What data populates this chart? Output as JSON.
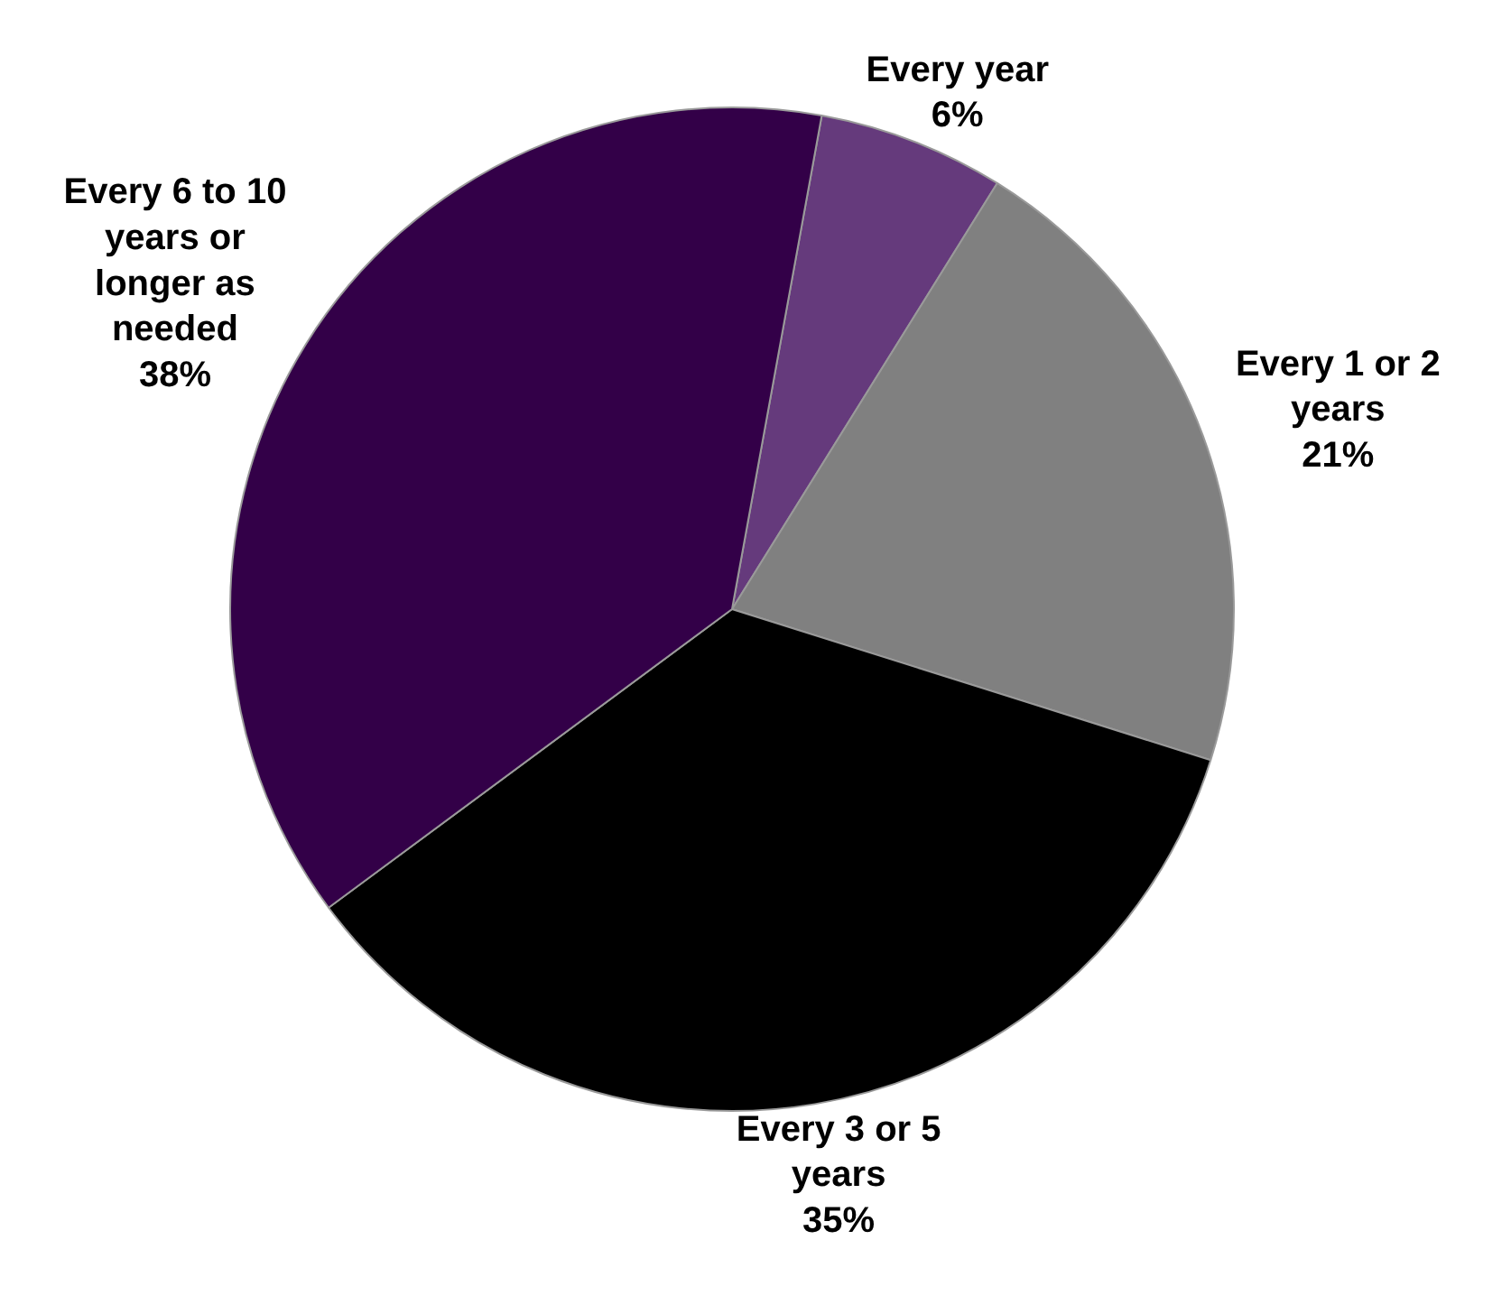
{
  "chart_data": {
    "type": "pie",
    "categories": [
      "Every year",
      "Every 1 or 2 years",
      "Every 3 or 5 years",
      "Every 6 to 10 years or longer as needed"
    ],
    "values": [
      6,
      21,
      35,
      38
    ],
    "colors": [
      "#653a7c",
      "#808080",
      "#000000",
      "#330048"
    ],
    "value_labels": [
      "6%",
      "21%",
      "35%",
      "38%"
    ]
  }
}
